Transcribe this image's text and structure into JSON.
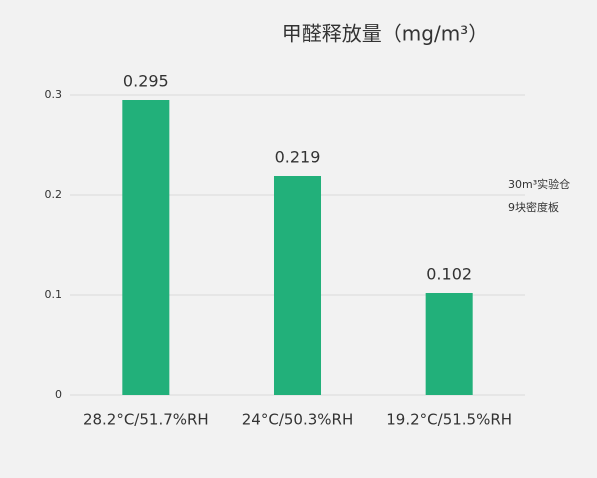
{
  "chart_data": {
    "type": "bar",
    "title": "甲醛释放量（mg/m³）",
    "categories": [
      "28.2°C/51.7%RH",
      "24°C/50.3%RH",
      "19.2°C/51.5%RH"
    ],
    "values": [
      0.295,
      0.219,
      0.102
    ],
    "color": "#22b07a",
    "ylim": [
      0,
      0.3
    ],
    "yticks": [
      0,
      0.1,
      0.2,
      0.3
    ],
    "grid": true,
    "annotations": [
      "30m³实验仓",
      "9块密度板"
    ]
  }
}
